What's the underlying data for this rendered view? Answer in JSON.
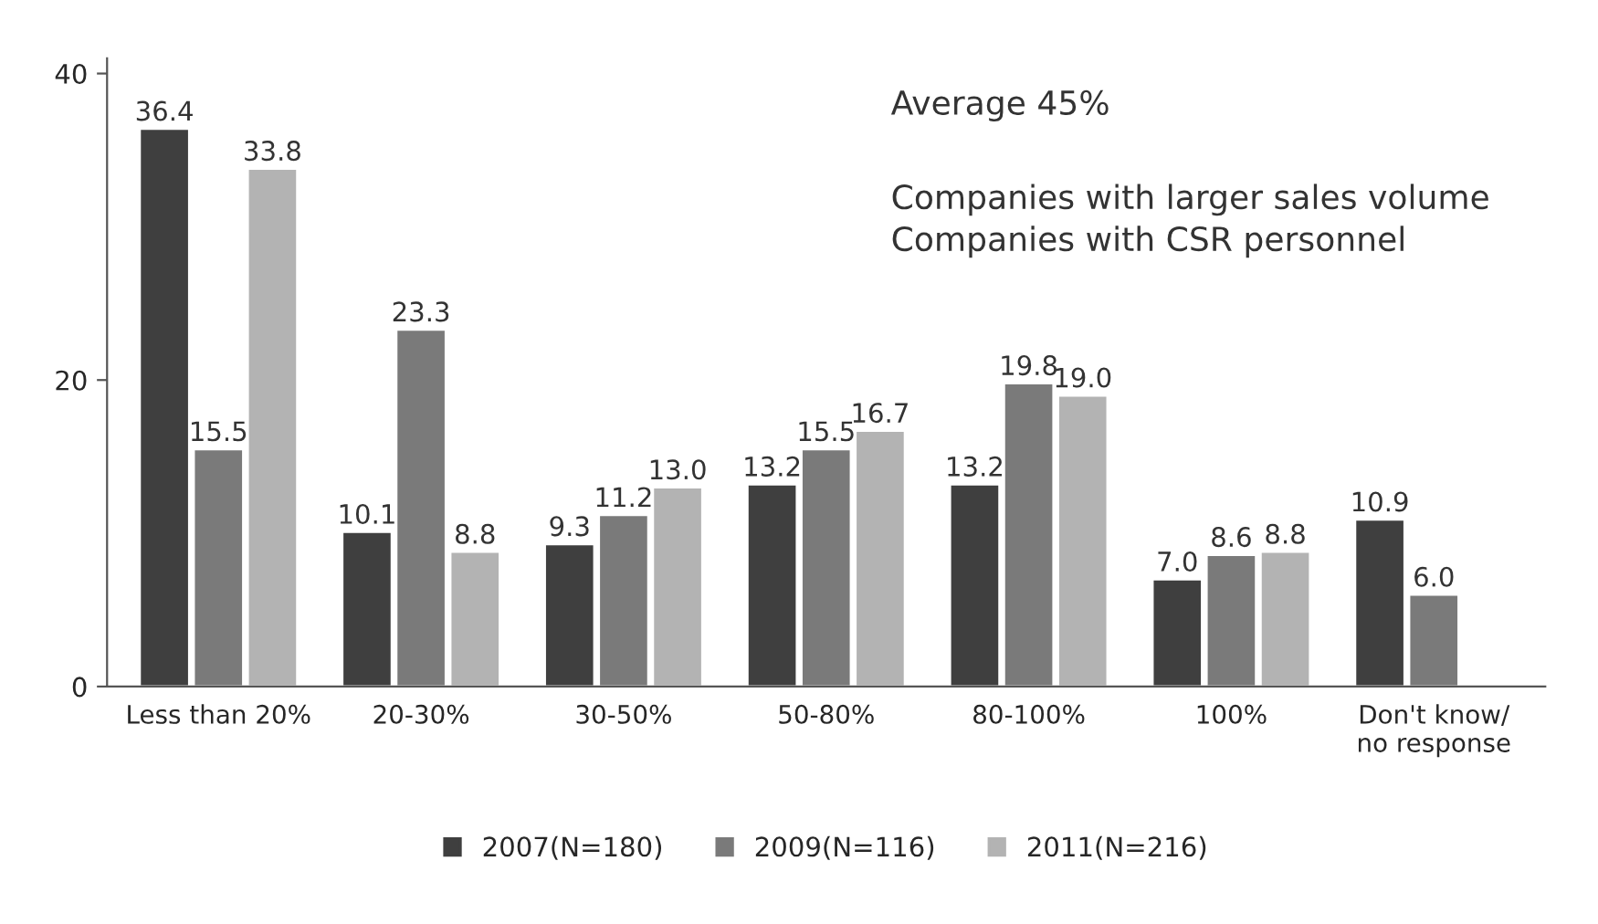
{
  "chart_data": {
    "type": "bar",
    "categories": [
      "Less than 20%",
      "20-30%",
      "30-50%",
      "50-80%",
      "80-100%",
      "100%",
      "Don't know/\nno response"
    ],
    "series": [
      {
        "name": "2007(N=180)",
        "color": "#3f3f3f",
        "values": [
          36.4,
          10.1,
          9.3,
          13.2,
          13.2,
          7.0,
          10.9
        ],
        "value_labels": [
          "36.4",
          "10.1",
          "9.3",
          "13.2",
          "13.2",
          "7.0",
          "10.9"
        ]
      },
      {
        "name": "2009(N=116)",
        "color": "#7a7a7a",
        "values": [
          15.5,
          23.3,
          11.2,
          15.5,
          19.8,
          8.6,
          6.0
        ],
        "value_labels": [
          "15.5",
          "23.3",
          "11.2",
          "15.5",
          "19.8",
          "8.6",
          "6.0"
        ]
      },
      {
        "name": "2011(N=216)",
        "color": "#b3b3b3",
        "values": [
          33.8,
          8.8,
          13.0,
          16.7,
          19.0,
          8.8,
          null
        ],
        "value_labels": [
          "33.8",
          "8.8",
          "13.0",
          "16.7",
          "19.0",
          "8.8",
          null
        ]
      }
    ],
    "ylim": [
      0,
      41
    ],
    "yticks": [
      0,
      20,
      40
    ],
    "grid": false,
    "legend": "bottom",
    "annotations": [
      "Average 45%",
      "Companies with larger sales volume\nCompanies with CSR personnel"
    ]
  }
}
